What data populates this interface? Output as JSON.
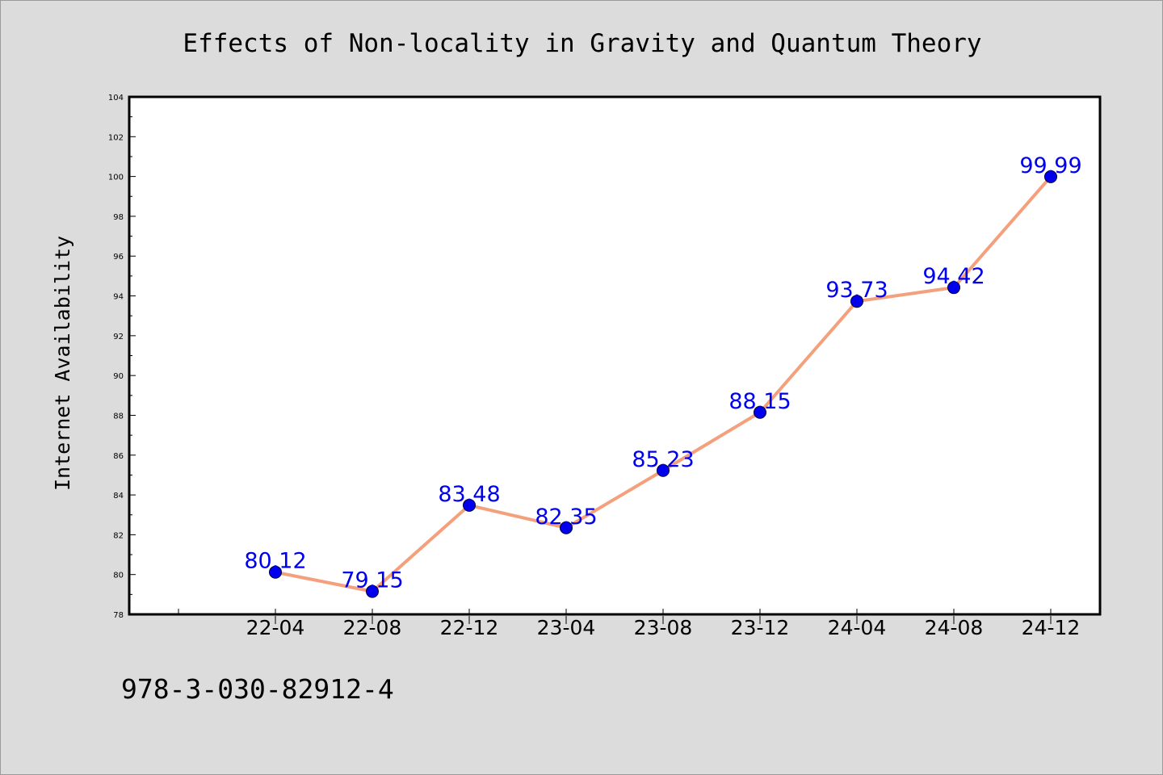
{
  "chart_data": {
    "type": "line",
    "title": "Effects of Non-locality in Gravity and Quantum Theory",
    "xlabel": "",
    "ylabel": "Internet Availability",
    "categories": [
      "22-04",
      "22-08",
      "22-12",
      "23-04",
      "23-08",
      "23-12",
      "24-04",
      "24-08",
      "24-12"
    ],
    "series": [
      {
        "values": [
          80.12,
          79.15,
          83.48,
          82.35,
          85.23,
          88.15,
          93.73,
          94.42,
          99.99
        ],
        "value_labels": [
          "80.12",
          "79.15",
          "83.48",
          "82.35",
          "85.23",
          "88.15",
          "93.73",
          "94.42",
          "99.99"
        ]
      }
    ],
    "ylim": [
      78,
      104
    ],
    "yticks": [
      "78",
      "80",
      "82",
      "84",
      "86",
      "88",
      "90",
      "92",
      "94",
      "96",
      "98",
      "100",
      "102",
      "104"
    ],
    "grid": false,
    "legend": "none",
    "colors": {
      "line": "#f4a07c",
      "marker": "#0000ee",
      "data_label": "#0000ee",
      "plot_background": "#ffffff",
      "figure_background": "#dcdcdc"
    }
  },
  "footer": {
    "isbn": "978-3-030-82912-4"
  }
}
